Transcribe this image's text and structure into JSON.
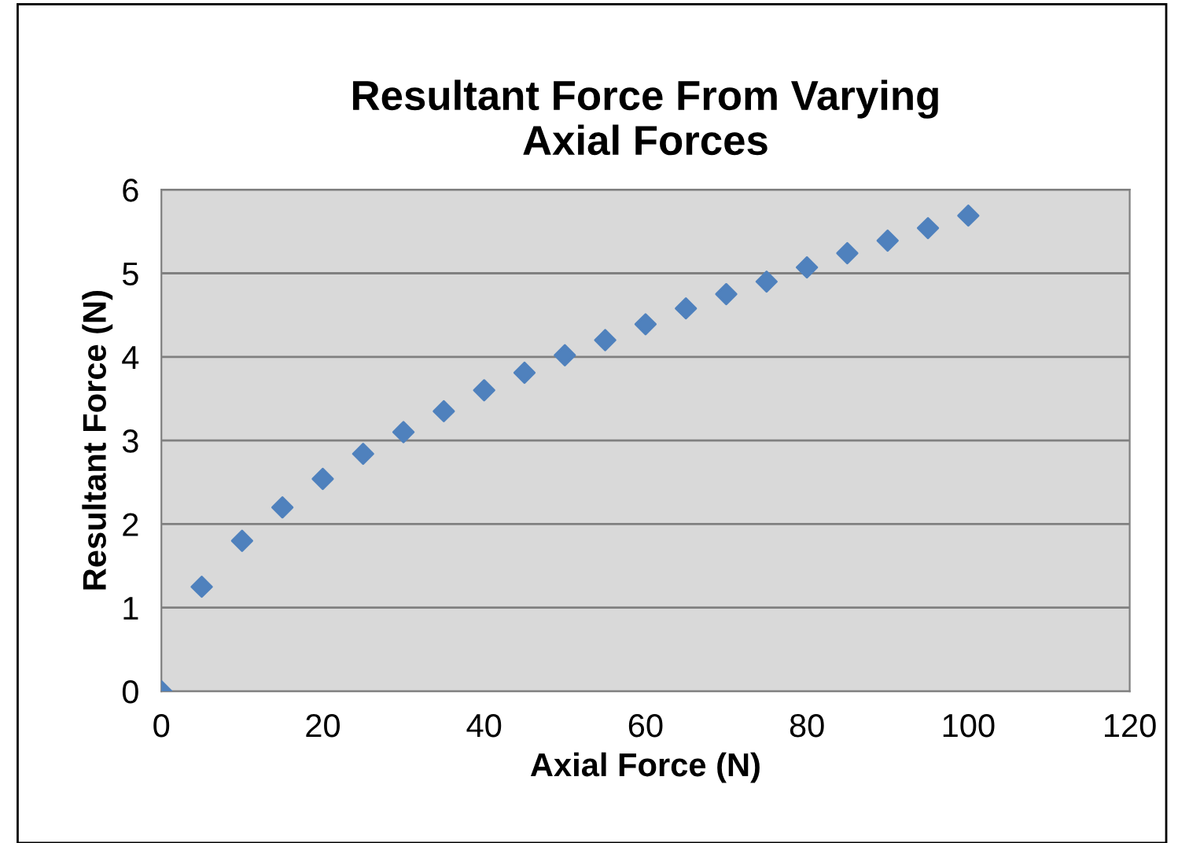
{
  "chart_data": {
    "type": "scatter",
    "title": "Resultant Force From Varying\nAxial Forces",
    "xlabel": "Axial Force (N)",
    "ylabel": "Resultant Force (N)",
    "x": [
      0,
      5,
      10,
      15,
      20,
      25,
      30,
      35,
      40,
      45,
      50,
      55,
      60,
      65,
      70,
      75,
      80,
      85,
      90,
      95,
      100
    ],
    "series": [
      {
        "color": "#4f81bd",
        "values": [
          0,
          1.25,
          1.8,
          2.2,
          2.54,
          2.84,
          3.1,
          3.35,
          3.6,
          3.81,
          4.02,
          4.2,
          4.39,
          4.58,
          4.75,
          4.9,
          5.07,
          5.24,
          5.39,
          5.54,
          5.69
        ]
      }
    ],
    "xlim": [
      0,
      120
    ],
    "xticks": [
      0,
      20,
      40,
      60,
      80,
      100,
      120
    ],
    "ylim": [
      0,
      6
    ],
    "yticks": [
      0,
      1,
      2,
      3,
      4,
      5,
      6
    ],
    "grid": "y",
    "marker": "diamond",
    "legend": false
  }
}
